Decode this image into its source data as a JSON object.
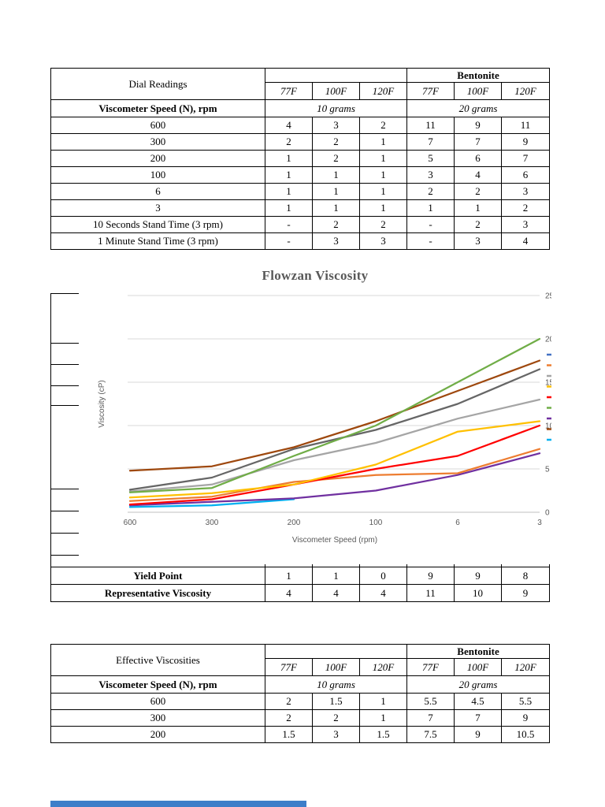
{
  "dial_table": {
    "title": "Dial Readings",
    "group_header": "Bentonite",
    "temps": [
      "77F",
      "100F",
      "120F",
      "77F",
      "100F",
      "120F"
    ],
    "speed_header": "Viscometer Speed (N), rpm",
    "grams": [
      "10 grams",
      "20 grams"
    ],
    "rows": [
      {
        "label": "600",
        "values": [
          "4",
          "3",
          "2",
          "11",
          "9",
          "11"
        ]
      },
      {
        "label": "300",
        "values": [
          "2",
          "2",
          "1",
          "7",
          "7",
          "9"
        ]
      },
      {
        "label": "200",
        "values": [
          "1",
          "2",
          "1",
          "5",
          "6",
          "7"
        ]
      },
      {
        "label": "100",
        "values": [
          "1",
          "1",
          "1",
          "3",
          "4",
          "6"
        ]
      },
      {
        "label": "6",
        "values": [
          "1",
          "1",
          "1",
          "2",
          "2",
          "3"
        ]
      },
      {
        "label": "3",
        "values": [
          "1",
          "1",
          "1",
          "1",
          "1",
          "2"
        ]
      },
      {
        "label": "10 Seconds Stand Time (3 rpm)",
        "values": [
          "-",
          "2",
          "2",
          "-",
          "2",
          "3"
        ]
      },
      {
        "label": "1 Minute Stand Time (3 rpm)",
        "values": [
          "-",
          "3",
          "3",
          "-",
          "3",
          "4"
        ]
      }
    ]
  },
  "results_table": {
    "rows": [
      {
        "label": "Yield Point",
        "values": [
          "1",
          "1",
          "0",
          "9",
          "9",
          "8"
        ]
      },
      {
        "label": "Representative Viscosity",
        "values": [
          "4",
          "4",
          "4",
          "11",
          "10",
          "9"
        ]
      }
    ]
  },
  "effective_table": {
    "title": "Effective Viscosities",
    "group_header": "Bentonite",
    "temps": [
      "77F",
      "100F",
      "120F",
      "77F",
      "100F",
      "120F"
    ],
    "speed_header": "Viscometer Speed (N), rpm",
    "grams": [
      "10 grams",
      "20 grams"
    ],
    "rows": [
      {
        "label": "600",
        "values": [
          "2",
          "1.5",
          "1",
          "5.5",
          "4.5",
          "5.5"
        ]
      },
      {
        "label": "300",
        "values": [
          "2",
          "2",
          "1",
          "7",
          "7",
          "9"
        ]
      },
      {
        "label": "200",
        "values": [
          "1.5",
          "3",
          "1.5",
          "7.5",
          "9",
          "10.5"
        ]
      }
    ]
  },
  "chart_data": {
    "type": "line",
    "title": "Flowzan Viscosity",
    "xlabel": "Viscometer Speed (rpm)",
    "ylabel": "Viscosity (cP)",
    "categories": [
      "600",
      "300",
      "200",
      "100",
      "6",
      "3"
    ],
    "ylim": [
      0,
      25
    ],
    "yticks": [
      0,
      5,
      10,
      15,
      20,
      25
    ],
    "grid": true,
    "legend_position": "right (labels clipped off page)",
    "series": [
      {
        "name": "green",
        "color": "#70AD47",
        "values": [
          2.3,
          2.8,
          6.5,
          10,
          15,
          20
        ]
      },
      {
        "name": "brown",
        "color": "#9E480E",
        "values": [
          4.8,
          5.3,
          7.5,
          10.5,
          14,
          17.5
        ]
      },
      {
        "name": "dark-gray",
        "color": "#666666",
        "values": [
          2.6,
          4,
          7.3,
          9.5,
          12.5,
          16.5
        ]
      },
      {
        "name": "silver",
        "color": "#A5A5A5",
        "values": [
          2.4,
          3.2,
          6,
          8,
          10.8,
          13
        ]
      },
      {
        "name": "yellow",
        "color": "#FFC000",
        "values": [
          1.7,
          2.2,
          3.2,
          5.5,
          9.3,
          10.5
        ]
      },
      {
        "name": "red",
        "color": "#FF0000",
        "values": [
          0.9,
          1.5,
          3.2,
          5,
          6.5,
          10
        ]
      },
      {
        "name": "orange",
        "color": "#ED7D31",
        "values": [
          1.3,
          1.8,
          3.5,
          4.3,
          4.5,
          7.3
        ]
      },
      {
        "name": "purple",
        "color": "#7030A0",
        "values": [
          0.8,
          1.2,
          1.6,
          2.5,
          4.3,
          6.8
        ]
      },
      {
        "name": "light-blue",
        "color": "#00B0F0",
        "values": [
          0.6,
          0.8,
          1.5,
          null,
          null,
          null
        ]
      }
    ],
    "legend_swatches": [
      "#4472C4",
      "#ED7D31",
      "#A5A5A5",
      "#FFC000",
      "#FF0000",
      "#70AD47",
      "#7030A0",
      "#9E480E",
      "#00B0F0"
    ]
  }
}
